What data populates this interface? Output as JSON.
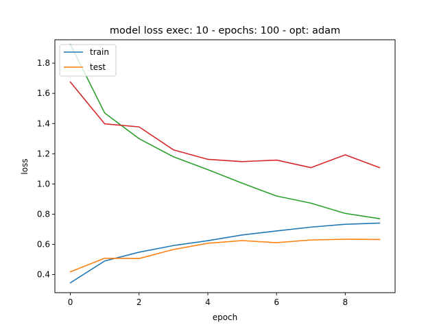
{
  "chart_data": {
    "type": "line",
    "title": "model loss exec: 10 - epochs: 100 - opt: adam",
    "xlabel": "epoch",
    "ylabel": "loss",
    "xlim": [
      -0.45,
      9.45
    ],
    "ylim": [
      0.28,
      1.955
    ],
    "x": [
      0,
      1,
      2,
      3,
      4,
      5,
      6,
      7,
      8,
      9
    ],
    "xticks": [
      0,
      2,
      4,
      6,
      8
    ],
    "yticks": [
      0.4,
      0.6,
      0.8,
      1.0,
      1.2,
      1.4,
      1.6,
      1.8
    ],
    "ytick_labels": [
      "0.4",
      "0.6",
      "0.8",
      "1.0",
      "1.2",
      "1.4",
      "1.6",
      "1.8"
    ],
    "grid": false,
    "legend_position": "top-left",
    "series": [
      {
        "name": "train",
        "color": "#1f77b4",
        "values": [
          0.345,
          0.49,
          0.548,
          0.592,
          0.624,
          0.662,
          0.689,
          0.714,
          0.733,
          0.741
        ]
      },
      {
        "name": "test",
        "color": "#ff7f0e",
        "values": [
          0.418,
          0.508,
          0.506,
          0.566,
          0.607,
          0.625,
          0.611,
          0.629,
          0.634,
          0.632
        ]
      },
      {
        "color": "#2ca02c",
        "values": [
          1.925,
          1.47,
          1.3,
          1.18,
          1.095,
          1.005,
          0.92,
          0.873,
          0.805,
          0.77
        ]
      },
      {
        "color": "#d62728",
        "values": [
          1.675,
          1.398,
          1.378,
          1.226,
          1.163,
          1.148,
          1.158,
          1.108,
          1.193,
          1.108
        ]
      }
    ]
  }
}
